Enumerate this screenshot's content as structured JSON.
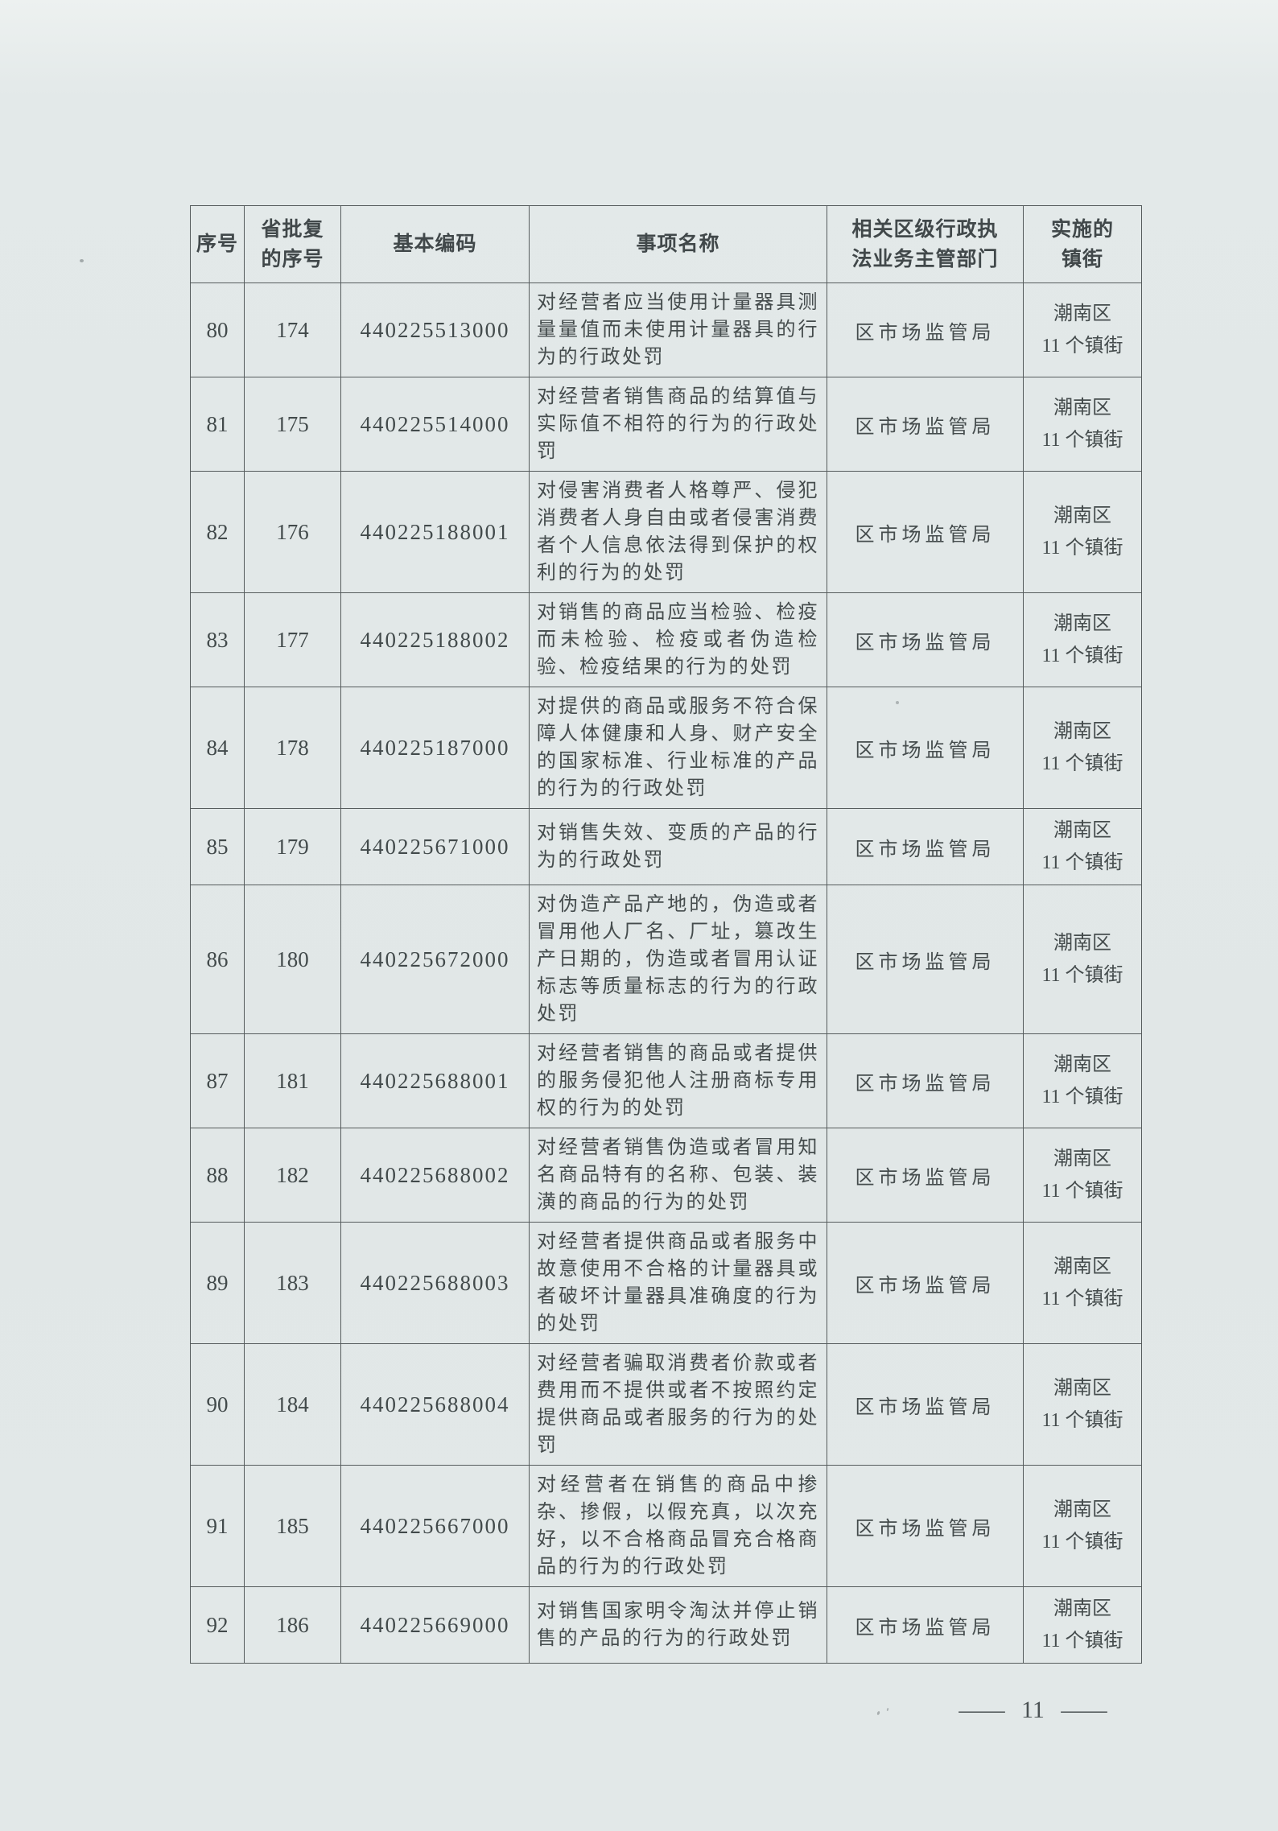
{
  "table": {
    "headers": [
      "序号",
      "省批复\n的序号",
      "基本编码",
      "事项名称",
      "相关区级行政执\n法业务主管部门",
      "实施的\n镇街"
    ],
    "rows": [
      {
        "no": "80",
        "approval_no": "174",
        "code": "440225513000",
        "item_name": "对经营者应当使用计量器具测量量值而未使用计量器具的行为的行政处罚",
        "department": "区市场监管局",
        "towns": "潮南区\n11 个镇街"
      },
      {
        "no": "81",
        "approval_no": "175",
        "code": "440225514000",
        "item_name": "对经营者销售商品的结算值与实际值不相符的行为的行政处罚",
        "department": "区市场监管局",
        "towns": "潮南区\n11 个镇街"
      },
      {
        "no": "82",
        "approval_no": "176",
        "code": "440225188001",
        "item_name": "对侵害消费者人格尊严、侵犯消费者人身自由或者侵害消费者个人信息依法得到保护的权利的行为的处罚",
        "department": "区市场监管局",
        "towns": "潮南区\n11 个镇街"
      },
      {
        "no": "83",
        "approval_no": "177",
        "code": "440225188002",
        "item_name": "对销售的商品应当检验、检疫而未检验、检疫或者伪造检验、检疫结果的行为的处罚",
        "department": "区市场监管局",
        "towns": "潮南区\n11 个镇街"
      },
      {
        "no": "84",
        "approval_no": "178",
        "code": "440225187000",
        "item_name": "对提供的商品或服务不符合保障人体健康和人身、财产安全的国家标准、行业标准的产品的行为的行政处罚",
        "department": "区市场监管局",
        "towns": "潮南区\n11 个镇街"
      },
      {
        "no": "85",
        "approval_no": "179",
        "code": "440225671000",
        "item_name": "对销售失效、变质的产品的行为的行政处罚",
        "department": "区市场监管局",
        "towns": "潮南区\n11 个镇街"
      },
      {
        "no": "86",
        "approval_no": "180",
        "code": "440225672000",
        "item_name": "对伪造产品产地的，伪造或者冒用他人厂名、厂址，篡改生产日期的，伪造或者冒用认证标志等质量标志的行为的行政处罚",
        "department": "区市场监管局",
        "towns": "潮南区\n11 个镇街"
      },
      {
        "no": "87",
        "approval_no": "181",
        "code": "440225688001",
        "item_name": "对经营者销售的商品或者提供的服务侵犯他人注册商标专用权的行为的处罚",
        "department": "区市场监管局",
        "towns": "潮南区\n11 个镇街"
      },
      {
        "no": "88",
        "approval_no": "182",
        "code": "440225688002",
        "item_name": "对经营者销售伪造或者冒用知名商品特有的名称、包装、装潢的商品的行为的处罚",
        "department": "区市场监管局",
        "towns": "潮南区\n11 个镇街"
      },
      {
        "no": "89",
        "approval_no": "183",
        "code": "440225688003",
        "item_name": "对经营者提供商品或者服务中故意使用不合格的计量器具或者破坏计量器具准确度的行为的处罚",
        "department": "区市场监管局",
        "towns": "潮南区\n11 个镇街"
      },
      {
        "no": "90",
        "approval_no": "184",
        "code": "440225688004",
        "item_name": "对经营者骗取消费者价款或者费用而不提供或者不按照约定提供商品或者服务的行为的处罚",
        "department": "区市场监管局",
        "towns": "潮南区\n11 个镇街"
      },
      {
        "no": "91",
        "approval_no": "185",
        "code": "440225667000",
        "item_name": "对经营者在销售的商品中掺杂、掺假，以假充真，以次充好，以不合格商品冒充合格商品的行为的行政处罚",
        "department": "区市场监管局",
        "towns": "潮南区\n11 个镇街"
      },
      {
        "no": "92",
        "approval_no": "186",
        "code": "440225669000",
        "item_name": "对销售国家明令淘汰并停止销售的产品的行为的行政处罚",
        "department": "区市场监管局",
        "towns": "潮南区\n11 个镇街"
      }
    ]
  },
  "footer": {
    "dash": "—",
    "page_number": "11"
  }
}
